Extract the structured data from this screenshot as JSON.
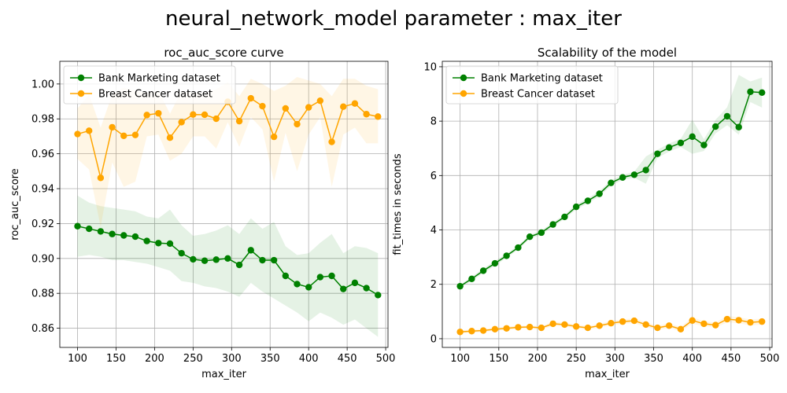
{
  "figure": {
    "suptitle": "neural_network_model parameter : max_iter"
  },
  "colors": {
    "bank": "#008000",
    "breast": "#FFA500",
    "grid": "#b0b0b0"
  },
  "chart_data": [
    {
      "type": "line",
      "title": "roc_auc_score curve",
      "xlabel": "max_iter",
      "ylabel": "roc_auc_score",
      "xlim": [
        77,
        503
      ],
      "ylim": [
        0.849,
        1.013
      ],
      "xticks": [
        100,
        150,
        200,
        250,
        300,
        350,
        400,
        450,
        500
      ],
      "yticks": [
        0.86,
        0.88,
        0.9,
        0.92,
        0.94,
        0.96,
        0.98,
        1.0
      ],
      "ytick_labels": [
        "0.86",
        "0.88",
        "0.90",
        "0.92",
        "0.94",
        "0.96",
        "0.98",
        "1.00"
      ],
      "grid": true,
      "legend_position": "upper-left",
      "x": [
        100,
        115,
        130,
        145,
        160,
        175,
        190,
        205,
        220,
        235,
        250,
        265,
        280,
        295,
        310,
        325,
        340,
        355,
        370,
        385,
        400,
        415,
        430,
        445,
        460,
        475,
        490
      ],
      "series": [
        {
          "name": "Bank Marketing dataset",
          "color": "#008000",
          "values": [
            0.9185,
            0.917,
            0.9155,
            0.914,
            0.9132,
            0.9125,
            0.91,
            0.9088,
            0.9085,
            0.903,
            0.8995,
            0.8987,
            0.8993,
            0.9,
            0.8963,
            0.9047,
            0.899,
            0.899,
            0.89,
            0.8853,
            0.8835,
            0.8893,
            0.89,
            0.8825,
            0.886,
            0.883,
            0.879
          ],
          "lower": [
            0.901,
            0.902,
            0.901,
            0.899,
            0.899,
            0.898,
            0.897,
            0.895,
            0.893,
            0.887,
            0.886,
            0.884,
            0.883,
            0.881,
            0.878,
            0.886,
            0.881,
            0.877,
            0.873,
            0.869,
            0.864,
            0.869,
            0.866,
            0.862,
            0.865,
            0.86,
            0.855
          ],
          "upper": [
            0.936,
            0.932,
            0.93,
            0.929,
            0.928,
            0.927,
            0.924,
            0.923,
            0.928,
            0.919,
            0.913,
            0.914,
            0.916,
            0.919,
            0.914,
            0.923,
            0.917,
            0.921,
            0.907,
            0.902,
            0.903,
            0.909,
            0.914,
            0.903,
            0.907,
            0.906,
            0.903
          ]
        },
        {
          "name": "Breast Cancer dataset",
          "color": "#FFA500",
          "values": [
            0.9713,
            0.9732,
            0.9462,
            0.9752,
            0.9703,
            0.9708,
            0.9822,
            0.9832,
            0.9692,
            0.9781,
            0.9825,
            0.9824,
            0.9801,
            0.9898,
            0.9787,
            0.9918,
            0.9873,
            0.9697,
            0.986,
            0.977,
            0.9866,
            0.9904,
            0.9668,
            0.987,
            0.9888,
            0.9827,
            0.9813
          ],
          "lower": [
            0.957,
            0.951,
            0.918,
            0.955,
            0.941,
            0.944,
            0.97,
            0.971,
            0.956,
            0.96,
            0.97,
            0.97,
            0.963,
            0.978,
            0.964,
            0.981,
            0.974,
            0.944,
            0.972,
            0.95,
            0.971,
            0.981,
            0.941,
            0.971,
            0.975,
            0.966,
            0.966
          ],
          "upper": [
            0.986,
            0.994,
            0.975,
            0.994,
            0.998,
            0.996,
            0.995,
            0.996,
            0.983,
            0.996,
            0.995,
            0.995,
            0.997,
            1.001,
            0.993,
            1.003,
            1.0,
            0.996,
            0.999,
            1.004,
            1.002,
            1.0,
            0.993,
            1.003,
            1.003,
            0.999,
            0.997
          ]
        }
      ]
    },
    {
      "type": "line",
      "title": "Scalability of the model",
      "xlabel": "max_iter",
      "ylabel": "fit_times in seconds",
      "xlim": [
        77,
        503
      ],
      "ylim": [
        -0.32,
        10.2
      ],
      "xticks": [
        100,
        150,
        200,
        250,
        300,
        350,
        400,
        450,
        500
      ],
      "yticks": [
        0,
        2,
        4,
        6,
        8,
        10
      ],
      "ytick_labels": [
        "0",
        "2",
        "4",
        "6",
        "8",
        "10"
      ],
      "grid": true,
      "legend_position": "upper-left",
      "x": [
        100,
        115,
        130,
        145,
        160,
        175,
        190,
        205,
        220,
        235,
        250,
        265,
        280,
        295,
        310,
        325,
        340,
        355,
        370,
        385,
        400,
        415,
        430,
        445,
        460,
        475,
        490
      ],
      "series": [
        {
          "name": "Bank Marketing dataset",
          "color": "#008000",
          "values": [
            1.93,
            2.2,
            2.5,
            2.77,
            3.05,
            3.35,
            3.75,
            3.9,
            4.2,
            4.48,
            4.85,
            5.07,
            5.33,
            5.73,
            5.93,
            6.03,
            6.2,
            6.8,
            7.03,
            7.2,
            7.43,
            7.12,
            7.8,
            8.18,
            7.78,
            9.08,
            9.05
          ],
          "lower": [
            1.88,
            2.12,
            2.42,
            2.68,
            2.98,
            3.27,
            3.68,
            3.82,
            4.12,
            4.4,
            4.76,
            4.98,
            5.23,
            5.63,
            5.84,
            5.92,
            5.7,
            6.65,
            6.88,
            7.05,
            6.8,
            6.9,
            7.55,
            7.85,
            7.5,
            8.7,
            8.5
          ],
          "upper": [
            1.98,
            2.28,
            2.58,
            2.86,
            3.12,
            3.43,
            3.82,
            3.98,
            4.28,
            4.56,
            4.94,
            5.16,
            5.43,
            5.83,
            6.02,
            6.14,
            6.7,
            6.95,
            7.18,
            7.35,
            8.05,
            7.34,
            8.05,
            8.51,
            9.7,
            9.46,
            9.6
          ]
        },
        {
          "name": "Breast Cancer dataset",
          "color": "#FFA500",
          "values": [
            0.25,
            0.28,
            0.3,
            0.35,
            0.38,
            0.42,
            0.43,
            0.4,
            0.55,
            0.52,
            0.45,
            0.4,
            0.48,
            0.57,
            0.63,
            0.66,
            0.52,
            0.4,
            0.48,
            0.35,
            0.67,
            0.55,
            0.5,
            0.72,
            0.68,
            0.6,
            0.63
          ],
          "lower": [
            0.2,
            0.22,
            0.24,
            0.29,
            0.32,
            0.36,
            0.37,
            0.34,
            0.47,
            0.45,
            0.38,
            0.33,
            0.41,
            0.49,
            0.55,
            0.57,
            0.43,
            0.32,
            0.39,
            0.27,
            0.55,
            0.46,
            0.41,
            0.6,
            0.57,
            0.49,
            0.52
          ],
          "upper": [
            0.3,
            0.34,
            0.36,
            0.41,
            0.44,
            0.48,
            0.49,
            0.46,
            0.63,
            0.59,
            0.52,
            0.47,
            0.55,
            0.65,
            0.71,
            0.75,
            0.61,
            0.48,
            0.57,
            0.43,
            0.79,
            0.64,
            0.59,
            0.84,
            0.79,
            0.71,
            0.74
          ]
        }
      ]
    }
  ]
}
